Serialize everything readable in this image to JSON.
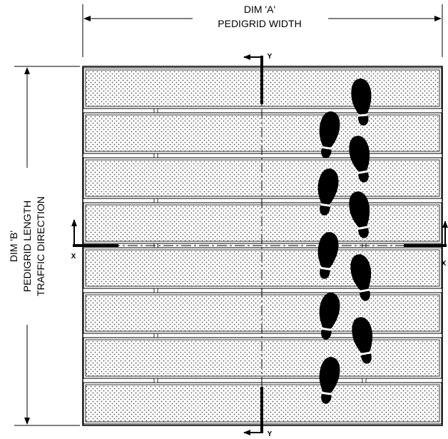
{
  "dim_a": {
    "line1": "DIM 'A'",
    "line2": "PEDIGRID WIDTH"
  },
  "dim_b": {
    "line1": "DIM 'B'",
    "line2": "PEDIGRID LENGTH",
    "line3": "TRAFFIC DIRECTION"
  },
  "section_marks": {
    "top": "Y",
    "bottom": "Y",
    "left": "X",
    "right": "X"
  },
  "grid": {
    "tread_count": 8
  },
  "colors": {
    "line": "#000000",
    "tread_dots": "#555555",
    "background": "#ffffff"
  }
}
